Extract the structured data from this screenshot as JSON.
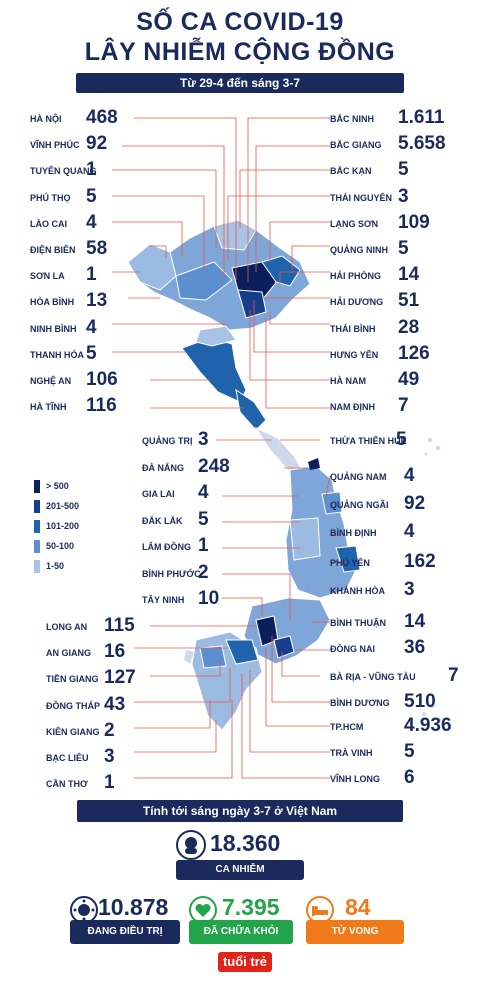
{
  "header": {
    "title_line1": "SỐ CA COVID-19",
    "title_line2": "LÂY NHIỄM CỘNG ĐỒNG",
    "subtitle": "Từ 29-4 đến sáng 3-7"
  },
  "chart_data": {
    "type": "table",
    "title": "SỐ CA COVID-19 LÂY NHIỄM CỘNG ĐỒNG",
    "subtitle": "Từ 29-4 đến sáng 3-7",
    "left": [
      {
        "name": "HÀ NỘI",
        "value": "468"
      },
      {
        "name": "VĨNH PHÚC",
        "value": "92"
      },
      {
        "name": "TUYÊN QUANG",
        "value": "1"
      },
      {
        "name": "PHÚ THỌ",
        "value": "5"
      },
      {
        "name": "LÀO CAI",
        "value": "4"
      },
      {
        "name": "ĐIỆN BIÊN",
        "value": "58"
      },
      {
        "name": "SƠN LA",
        "value": "1"
      },
      {
        "name": "HÒA BÌNH",
        "value": "13"
      },
      {
        "name": "NINH BÌNH",
        "value": "4"
      },
      {
        "name": "THANH HÓA",
        "value": "5"
      },
      {
        "name": "NGHỆ AN",
        "value": "106"
      },
      {
        "name": "HÀ TĨNH",
        "value": "116"
      }
    ],
    "right": [
      {
        "name": "BẮC NINH",
        "value": "1.611"
      },
      {
        "name": "BẮC GIANG",
        "value": "5.658"
      },
      {
        "name": "BẮC KẠN",
        "value": "5"
      },
      {
        "name": "THÁI NGUYÊN",
        "value": "3"
      },
      {
        "name": "LẠNG SƠN",
        "value": "109"
      },
      {
        "name": "QUẢNG NINH",
        "value": "5"
      },
      {
        "name": "HẢI PHÒNG",
        "value": "14"
      },
      {
        "name": "HẢI DƯƠNG",
        "value": "51"
      },
      {
        "name": "THÁI BÌNH",
        "value": "28"
      },
      {
        "name": "HƯNG YÊN",
        "value": "126"
      },
      {
        "name": "HÀ NAM",
        "value": "49"
      },
      {
        "name": "NAM ĐỊNH",
        "value": "7"
      },
      {
        "name": "THỪA THIÊN HUẾ",
        "value": "5"
      },
      {
        "name": "QUẢNG NAM",
        "value": "4"
      },
      {
        "name": "QUẢNG NGÃI",
        "value": "92"
      },
      {
        "name": "BÌNH ĐỊNH",
        "value": "4"
      },
      {
        "name": "PHÚ YÊN",
        "value": "162"
      },
      {
        "name": "KHÁNH HÒA",
        "value": "3"
      },
      {
        "name": "BÌNH THUẬN",
        "value": "14"
      },
      {
        "name": "ĐỒNG NAI",
        "value": "36"
      },
      {
        "name": "BÀ RỊA - VŨNG TÀU",
        "value": "7"
      },
      {
        "name": "BÌNH DƯƠNG",
        "value": "510"
      },
      {
        "name": "TP.HCM",
        "value": "4.936"
      },
      {
        "name": "TRÀ VINH",
        "value": "5"
      },
      {
        "name": "VĨNH LONG",
        "value": "6"
      }
    ],
    "center": [
      {
        "name": "QUẢNG TRỊ",
        "value": "3"
      },
      {
        "name": "ĐÀ NẴNG",
        "value": "248"
      },
      {
        "name": "GIA LAI",
        "value": "4"
      },
      {
        "name": "ĐẮK LẮK",
        "value": "5"
      },
      {
        "name": "LÂM ĐỒNG",
        "value": "1"
      },
      {
        "name": "BÌNH PHƯỚC",
        "value": "2"
      },
      {
        "name": "TÂY NINH",
        "value": "10"
      }
    ],
    "lower_left": [
      {
        "name": "LONG AN",
        "value": "115"
      },
      {
        "name": "AN GIANG",
        "value": "16"
      },
      {
        "name": "TIỀN GIANG",
        "value": "127"
      },
      {
        "name": "ĐỒNG THÁP",
        "value": "43"
      },
      {
        "name": "KIÊN GIANG",
        "value": "2"
      },
      {
        "name": "BẠC LIÊU",
        "value": "3"
      },
      {
        "name": "CẦN THƠ",
        "value": "1"
      }
    ],
    "legend": [
      {
        "label": "> 500",
        "color": "#0b1f5c"
      },
      {
        "label": "201-500",
        "color": "#173e8c"
      },
      {
        "label": "101-200",
        "color": "#1f63ad"
      },
      {
        "label": "50-100",
        "color": "#5b8fd0"
      },
      {
        "label": "1-50",
        "color": "#a9c3e6"
      }
    ]
  },
  "summary": {
    "bar": "Tính tới sáng ngày 3-7 ở Việt Nam",
    "infected_value": "18.360",
    "infected_label": "CA NHIỄM",
    "treating_value": "10.878",
    "treating_label": "ĐANG ĐIỀU TRỊ",
    "recovered_value": "7.395",
    "recovered_label": "ĐÃ CHỮA KHỎI",
    "deaths_value": "84",
    "deaths_label": "TỬ VONG"
  },
  "colors": {
    "navy": "#1a2a5c",
    "green": "#22a44a",
    "orange": "#f07a1a",
    "map_light": "#cdd9ea"
  },
  "logo": {
    "text": "tuổi trẻ"
  }
}
